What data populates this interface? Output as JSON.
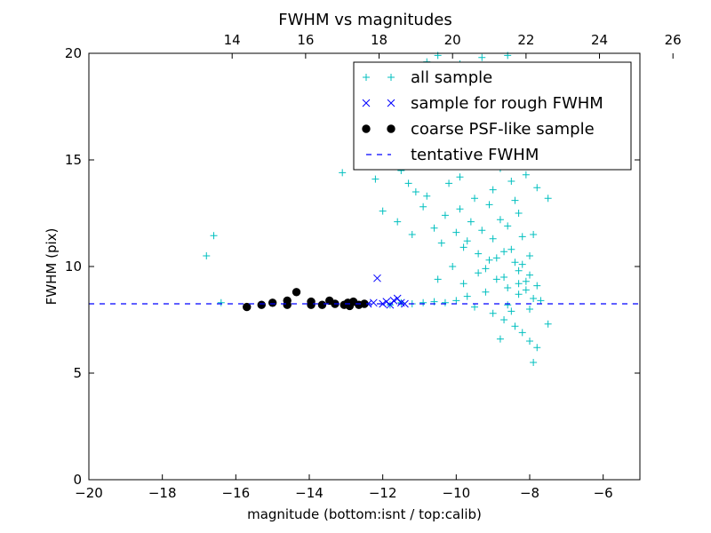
{
  "chart_data": {
    "type": "scatter",
    "title": "FWHM vs magnitudes",
    "xlabel": "magnitude (bottom:isnt / top:calib)",
    "ylabel": "FWHM (pix)",
    "xlim": [
      -20,
      -5
    ],
    "ylim": [
      0,
      20
    ],
    "x_ticks": [
      -20,
      -18,
      -16,
      -14,
      -12,
      -10,
      -8,
      -6
    ],
    "y_ticks": [
      0,
      5,
      10,
      15,
      20
    ],
    "top_axis": {
      "offset_from_bottom": 30.1,
      "ticks": [
        14,
        16,
        18,
        20,
        22,
        24,
        26
      ]
    },
    "grid": false,
    "legend_position": "top-right",
    "colors": {
      "all_sample": "#00bfbf",
      "rough_sample": "#0000ff",
      "psf_sample": "#000000",
      "tentative_line": "#0000ff"
    },
    "series": [
      {
        "name": "all sample",
        "marker": "plus",
        "points": [
          [
            -16.8,
            10.5
          ],
          [
            -16.6,
            11.45
          ],
          [
            -16.4,
            8.3
          ],
          [
            -13.1,
            14.4
          ],
          [
            -12.2,
            14.1
          ],
          [
            -12.0,
            12.6
          ],
          [
            -11.6,
            12.1
          ],
          [
            -11.5,
            14.5
          ],
          [
            -11.3,
            13.9
          ],
          [
            -11.1,
            13.5
          ],
          [
            -11.2,
            11.5
          ],
          [
            -10.9,
            12.8
          ],
          [
            -10.8,
            13.3
          ],
          [
            -10.6,
            11.8
          ],
          [
            -10.4,
            11.1
          ],
          [
            -10.3,
            12.4
          ],
          [
            -10.2,
            13.9
          ],
          [
            -10.0,
            11.6
          ],
          [
            -9.9,
            12.7
          ],
          [
            -9.8,
            10.9
          ],
          [
            -9.7,
            11.2
          ],
          [
            -9.6,
            12.1
          ],
          [
            -9.5,
            13.2
          ],
          [
            -9.4,
            10.6
          ],
          [
            -9.3,
            11.7
          ],
          [
            -9.2,
            9.9
          ],
          [
            -9.1,
            12.9
          ],
          [
            -9.0,
            11.3
          ],
          [
            -8.9,
            10.4
          ],
          [
            -8.8,
            12.2
          ],
          [
            -8.7,
            9.5
          ],
          [
            -8.6,
            11.9
          ],
          [
            -8.5,
            10.8
          ],
          [
            -8.4,
            13.1
          ],
          [
            -8.3,
            9.2
          ],
          [
            -8.2,
            10.1
          ],
          [
            -8.1,
            8.9
          ],
          [
            -8.0,
            9.6
          ],
          [
            -7.9,
            8.5
          ],
          [
            -7.8,
            9.1
          ],
          [
            -8.3,
            12.5
          ],
          [
            -8.5,
            14.0
          ],
          [
            -8.8,
            14.6
          ],
          [
            -9.0,
            13.6
          ],
          [
            -9.3,
            15.2
          ],
          [
            -8.6,
            15.6
          ],
          [
            -8.2,
            16.2
          ],
          [
            -8.4,
            17.0
          ],
          [
            -8.7,
            18.4
          ],
          [
            -9.1,
            17.7
          ],
          [
            -8.9,
            16.6
          ],
          [
            -9.5,
            16.0
          ],
          [
            -10.0,
            15.8
          ],
          [
            -10.4,
            15.1
          ],
          [
            -8.1,
            14.3
          ],
          [
            -7.8,
            13.7
          ],
          [
            -7.6,
            14.9
          ],
          [
            -7.5,
            13.2
          ],
          [
            -7.9,
            11.5
          ],
          [
            -8.0,
            10.5
          ],
          [
            -8.3,
            9.8
          ],
          [
            -8.6,
            9.0
          ],
          [
            -8.9,
            9.4
          ],
          [
            -9.2,
            8.8
          ],
          [
            -9.4,
            9.7
          ],
          [
            -9.7,
            8.6
          ],
          [
            -10.0,
            8.4
          ],
          [
            -10.3,
            8.3
          ],
          [
            -10.6,
            8.35
          ],
          [
            -10.9,
            8.3
          ],
          [
            -11.2,
            8.25
          ],
          [
            -11.5,
            8.3
          ],
          [
            -11.8,
            8.2
          ],
          [
            -9.5,
            8.1
          ],
          [
            -9.0,
            7.8
          ],
          [
            -8.7,
            7.5
          ],
          [
            -8.4,
            7.2
          ],
          [
            -8.2,
            6.9
          ],
          [
            -8.0,
            6.5
          ],
          [
            -7.8,
            6.2
          ],
          [
            -7.9,
            5.5
          ],
          [
            -7.5,
            7.3
          ],
          [
            -8.8,
            6.6
          ],
          [
            -8.5,
            7.9
          ],
          [
            -9.8,
            9.2
          ],
          [
            -10.1,
            10.0
          ],
          [
            -10.5,
            9.4
          ],
          [
            -9.9,
            14.2
          ],
          [
            -8.2,
            11.4
          ],
          [
            -8.4,
            10.2
          ],
          [
            -8.1,
            9.3
          ],
          [
            -8.7,
            10.7
          ],
          [
            -9.1,
            10.3
          ],
          [
            -8.6,
            8.2
          ],
          [
            -8.3,
            8.7
          ],
          [
            -8.0,
            8.0
          ],
          [
            -7.7,
            8.4
          ],
          [
            -9.6,
            19.0
          ],
          [
            -10.2,
            19.3
          ],
          [
            -10.8,
            19.6
          ],
          [
            -9.3,
            19.8
          ],
          [
            -8.6,
            19.9
          ],
          [
            -9.9,
            19.5
          ],
          [
            -10.5,
            19.9
          ],
          [
            -11.0,
            19.4
          ]
        ]
      },
      {
        "name": "sample for rough FWHM",
        "marker": "x",
        "points": [
          [
            -12.4,
            8.25
          ],
          [
            -12.25,
            8.3
          ],
          [
            -12.15,
            9.45
          ],
          [
            -12.0,
            8.25
          ],
          [
            -11.9,
            8.35
          ],
          [
            -11.8,
            8.2
          ],
          [
            -11.7,
            8.4
          ],
          [
            -11.6,
            8.5
          ],
          [
            -11.5,
            8.3
          ],
          [
            -11.4,
            8.25
          ]
        ]
      },
      {
        "name": "coarse PSF-like sample",
        "marker": "circle",
        "points": [
          [
            -15.7,
            8.1
          ],
          [
            -15.3,
            8.2
          ],
          [
            -15.0,
            8.3
          ],
          [
            -14.6,
            8.2
          ],
          [
            -14.6,
            8.4
          ],
          [
            -14.35,
            8.8
          ],
          [
            -13.95,
            8.2
          ],
          [
            -13.95,
            8.35
          ],
          [
            -13.65,
            8.2
          ],
          [
            -13.45,
            8.4
          ],
          [
            -13.3,
            8.25
          ],
          [
            -13.05,
            8.2
          ],
          [
            -12.95,
            8.3
          ],
          [
            -12.9,
            8.15
          ],
          [
            -12.8,
            8.35
          ],
          [
            -12.65,
            8.2
          ],
          [
            -12.5,
            8.25
          ]
        ]
      },
      {
        "name": "tentative FWHM",
        "style": "dashed-line",
        "y": 8.25
      }
    ]
  }
}
